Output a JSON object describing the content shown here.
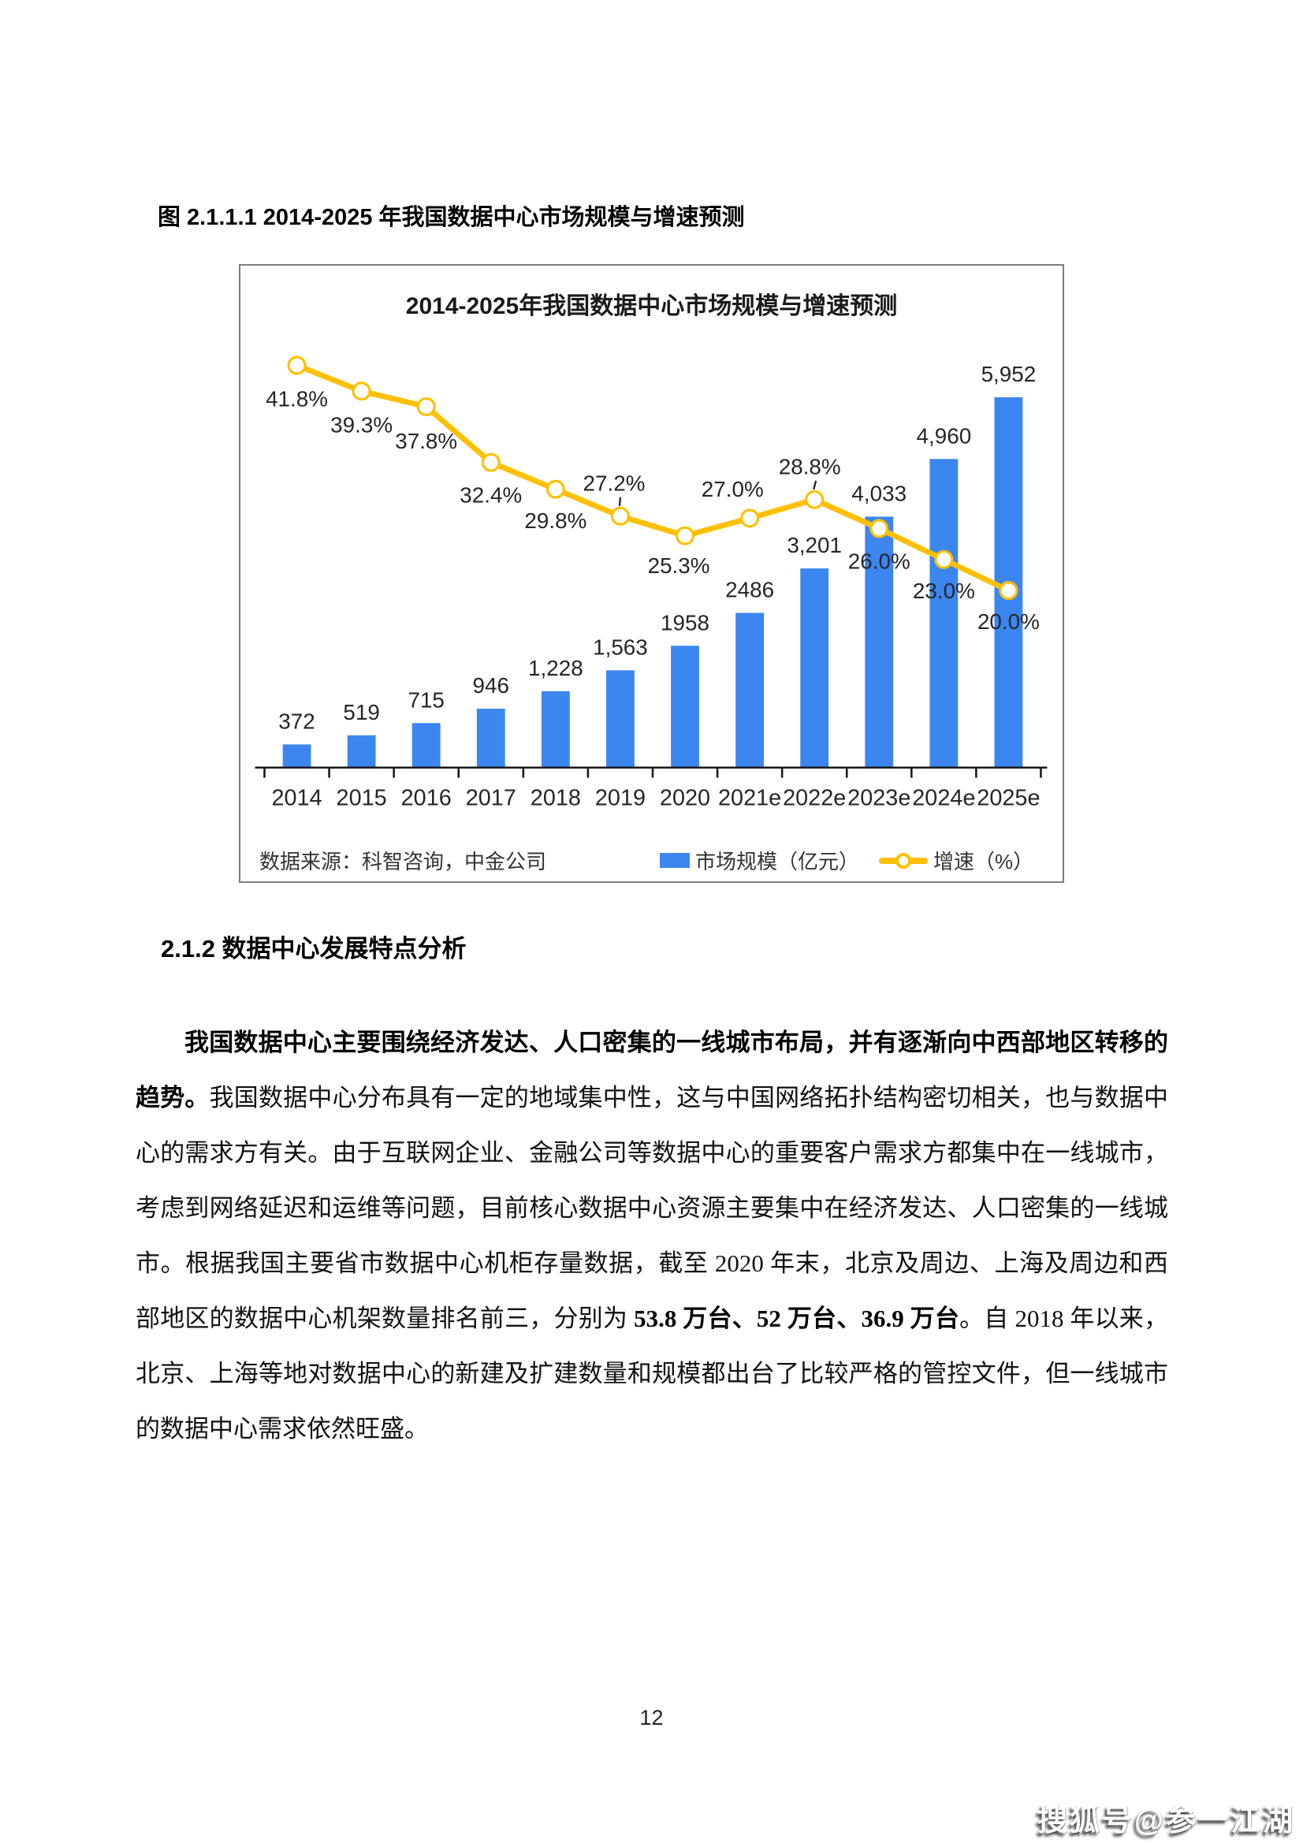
{
  "document": {
    "figure_caption": "图 2.1.1.1 2014-2025 年我国数据中心市场规模与增速预测",
    "section_heading": "2.1.2 数据中心发展特点分析",
    "paragraph": {
      "lead_bold": "我国数据中心主要围绕经济发达、人口密集的一线城市布局，并有逐渐向中西部地区转移的趋势。",
      "body_before_bold": "我国数据中心分布具有一定的地域集中性，这与中国网络拓扑结构密切相关，也与数据中心的需求方有关。由于互联网企业、金融公司等数据中心的重要客户需求方都集中在一线城市，考虑到网络延迟和运维等问题，目前核心数据中心资源主要集中在经济发达、人口密集的一线城市。根据我国主要省市数据中心机柜存量数据，截至 2020 年末，北京及周边、上海及周边和西部地区的数据中心机架数量排名前三，分别为 ",
      "bold_numbers": "53.8 万台、52 万台、36.9 万台",
      "body_after_bold": "。自 2018 年以来，北京、上海等地对数据中心的新建及扩建数量和规模都出台了比较严格的管控文件，但一线城市的数据中心需求依然旺盛。"
    },
    "page_number": "12",
    "watermark": "搜狐号@参一江湖"
  },
  "chart_data": {
    "type": "bar",
    "combo_types": [
      "bar",
      "line"
    ],
    "title": "2014-2025年我国数据中心市场规模与增速预测",
    "categories": [
      "2014",
      "2015",
      "2016",
      "2017",
      "2018",
      "2019",
      "2020",
      "2021e",
      "2022e",
      "2023e",
      "2024e",
      "2025e"
    ],
    "series": [
      {
        "name": "市场规模（亿元）",
        "type": "bar",
        "color": "#3C86F0",
        "values": [
          372,
          519,
          715,
          946,
          1228,
          1563,
          1958,
          2486,
          3201,
          4033,
          4960,
          5952
        ],
        "labels": [
          "372",
          "519",
          "715",
          "946",
          "1,228",
          "1,563",
          "1958",
          "2486",
          "3,201",
          "4,033",
          "4,960",
          "5,952"
        ]
      },
      {
        "name": "增速（%）",
        "type": "line",
        "color": "#FFC000",
        "marker_fill": "#FFFFFF",
        "values": [
          41.8,
          39.3,
          37.8,
          32.4,
          29.8,
          27.2,
          25.3,
          27.0,
          28.8,
          26.0,
          23.0,
          20.0
        ],
        "labels": [
          "41.8%",
          "39.3%",
          "37.8%",
          "32.4%",
          "29.8%",
          "27.2%",
          "25.3%",
          "27.0%",
          "28.8%",
          "26.0%",
          "23.0%",
          "20.0%"
        ]
      }
    ],
    "source": "数据来源：科智咨询，中金公司",
    "legend_position": "bottom",
    "value_axis": {
      "min": 0,
      "max": 6000,
      "visible": false
    },
    "percent_axis": {
      "min": 0,
      "max": 50,
      "visible": false
    },
    "grid": false,
    "xlabel": "",
    "ylabel": ""
  },
  "colors": {
    "bar_blue": "#3C86F0",
    "line_gold": "#FFC000",
    "axis_black": "#1a1a1a",
    "chart_border": "#7f7f7f"
  }
}
